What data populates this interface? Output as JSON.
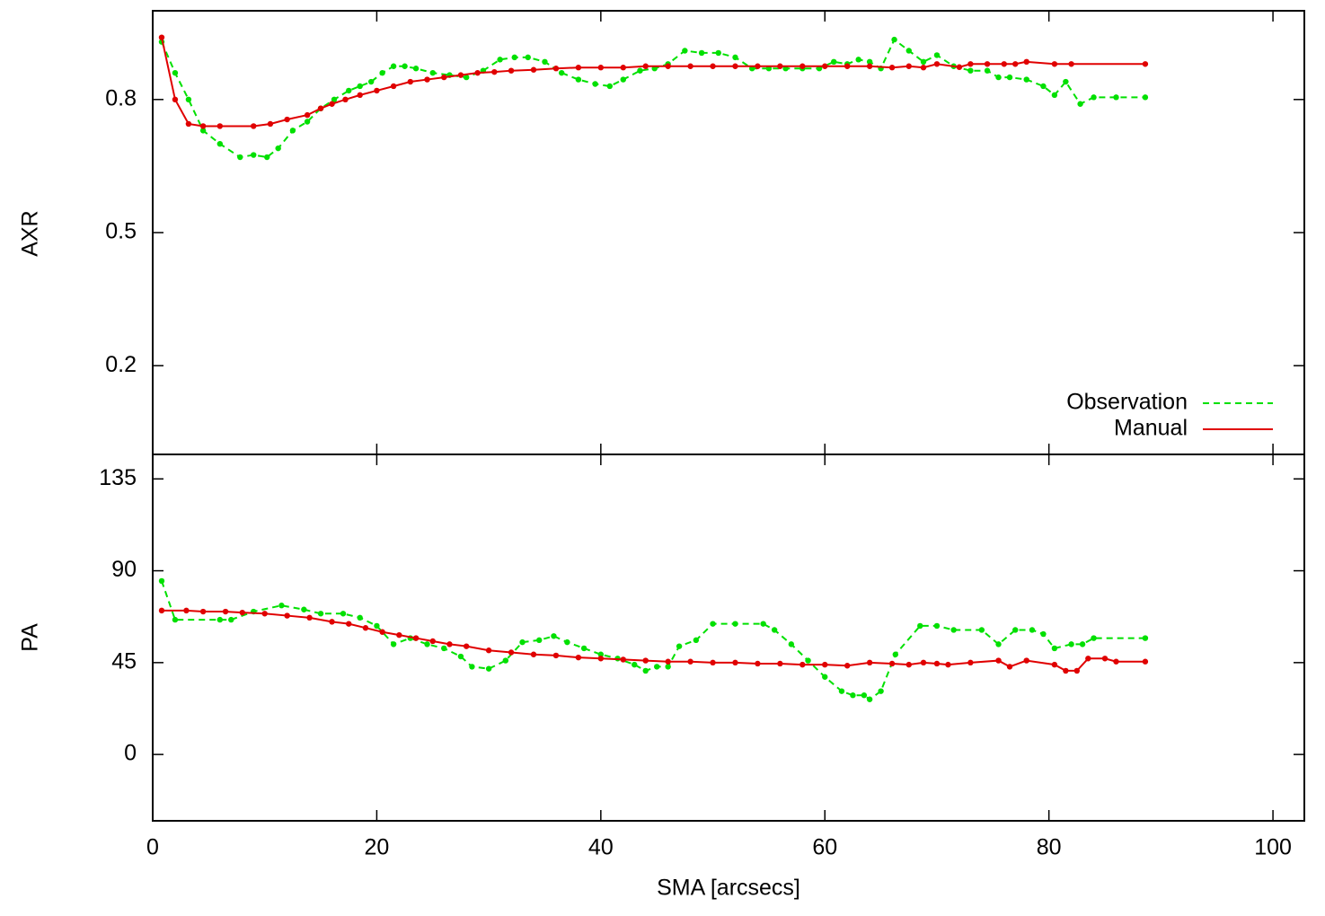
{
  "chart_data": [
    {
      "type": "line",
      "ylabel": "AXR",
      "xlim": [
        0,
        102.8
      ],
      "ylim": [
        0,
        1
      ],
      "yticks": [
        0.2,
        0.5,
        0.8
      ],
      "legend": "lower right",
      "series": [
        {
          "name": "Observation",
          "color": "#00e000",
          "linestyle": "dashed",
          "x": [
            0.8,
            2,
            3.2,
            4.5,
            6,
            7.8,
            9,
            10.2,
            11.2,
            12.5,
            13.8,
            15,
            16.2,
            17.5,
            18.5,
            19.5,
            20.5,
            21.5,
            22.5,
            23.5,
            25,
            26.5,
            28,
            29.5,
            31,
            32.3,
            33.5,
            35,
            36.5,
            38,
            39.5,
            40.8,
            42,
            43.5,
            44.8,
            46,
            47.5,
            49,
            50.5,
            52,
            53.5,
            55,
            56.5,
            58,
            59.5,
            60.8,
            62,
            63,
            64,
            65,
            66.2,
            67.5,
            68.8,
            70,
            71.5,
            73,
            74.5,
            75.5,
            76.5,
            78,
            79.5,
            80.5,
            81.5,
            82.8,
            84,
            86,
            88.6
          ],
          "values": [
            0.93,
            0.86,
            0.8,
            0.73,
            0.7,
            0.67,
            0.675,
            0.67,
            0.69,
            0.73,
            0.75,
            0.78,
            0.8,
            0.82,
            0.83,
            0.84,
            0.86,
            0.875,
            0.875,
            0.87,
            0.86,
            0.855,
            0.85,
            0.865,
            0.89,
            0.895,
            0.895,
            0.885,
            0.86,
            0.845,
            0.835,
            0.83,
            0.845,
            0.865,
            0.87,
            0.88,
            0.91,
            0.905,
            0.905,
            0.895,
            0.87,
            0.87,
            0.87,
            0.87,
            0.87,
            0.885,
            0.88,
            0.89,
            0.885,
            0.87,
            0.935,
            0.91,
            0.885,
            0.9,
            0.875,
            0.865,
            0.865,
            0.85,
            0.85,
            0.845,
            0.83,
            0.81,
            0.84,
            0.79,
            0.805,
            0.805,
            0.805
          ]
        },
        {
          "name": "Manual",
          "color": "#e00000",
          "linestyle": "solid",
          "x": [
            0.8,
            2,
            3.2,
            4.5,
            6,
            9,
            10.5,
            12,
            13.8,
            15,
            16,
            17.2,
            18.5,
            20,
            21.5,
            23,
            24.5,
            26,
            27.5,
            29,
            30.5,
            32,
            34,
            36,
            38,
            40,
            42,
            44,
            46,
            48,
            50,
            52,
            54,
            56,
            58,
            60,
            62,
            64,
            66,
            67.5,
            68.8,
            70,
            72,
            73,
            74.5,
            76,
            77,
            78,
            80.5,
            82,
            88.6
          ],
          "values": [
            0.94,
            0.8,
            0.745,
            0.74,
            0.74,
            0.74,
            0.745,
            0.755,
            0.765,
            0.78,
            0.79,
            0.8,
            0.81,
            0.82,
            0.83,
            0.84,
            0.845,
            0.85,
            0.855,
            0.86,
            0.862,
            0.865,
            0.867,
            0.87,
            0.872,
            0.872,
            0.872,
            0.875,
            0.875,
            0.875,
            0.875,
            0.875,
            0.875,
            0.875,
            0.875,
            0.875,
            0.875,
            0.875,
            0.872,
            0.875,
            0.872,
            0.88,
            0.873,
            0.88,
            0.88,
            0.88,
            0.88,
            0.885,
            0.88,
            0.88,
            0.88
          ]
        }
      ]
    },
    {
      "type": "line",
      "ylabel": "PA",
      "xlabel": "SMA [arcsecs]",
      "xlim": [
        0,
        102.8
      ],
      "xticks": [
        0,
        20,
        40,
        60,
        80,
        100
      ],
      "ylim": [
        -32.5,
        147
      ],
      "yticks": [
        0,
        45,
        90,
        135
      ],
      "series": [
        {
          "name": "Observation",
          "color": "#00e000",
          "linestyle": "dashed",
          "x": [
            0.8,
            2,
            6,
            7,
            9,
            11.5,
            13.5,
            15,
            17,
            18.5,
            20,
            21.5,
            23,
            24.5,
            26,
            27.5,
            28.5,
            30,
            31.5,
            33,
            34.5,
            35.8,
            37,
            38.5,
            40,
            41.5,
            43,
            44,
            45,
            46,
            47,
            48.5,
            50,
            52,
            54.5,
            55.5,
            57,
            58.5,
            60,
            61.5,
            62.5,
            63.5,
            64,
            65,
            66.3,
            68.5,
            70,
            71.5,
            74,
            75.5,
            77,
            78.5,
            79.5,
            80.5,
            82,
            83,
            84,
            88.6
          ],
          "values": [
            85,
            66,
            66,
            66,
            70,
            73,
            71,
            69,
            69,
            67,
            63,
            54,
            57,
            54,
            52,
            48,
            43,
            42,
            46,
            55,
            56,
            58,
            55,
            52,
            49,
            47,
            44,
            41,
            43,
            43,
            53,
            56,
            64,
            64,
            64,
            61,
            54,
            46,
            38,
            31,
            29,
            29,
            27,
            31,
            49,
            63,
            63,
            61,
            61,
            54,
            61,
            61,
            59,
            52,
            54,
            54,
            57,
            57
          ]
        },
        {
          "name": "Manual",
          "color": "#e00000",
          "linestyle": "solid",
          "x": [
            0.8,
            3,
            4.5,
            6.5,
            8,
            10,
            12,
            14,
            16,
            17.5,
            19,
            20.5,
            22,
            23.5,
            25,
            26.5,
            28,
            30,
            32,
            34,
            36,
            38,
            40,
            42,
            44,
            46,
            48,
            50,
            52,
            54,
            56,
            58,
            60,
            62,
            64,
            66,
            67.5,
            68.8,
            70,
            71,
            73,
            75.5,
            76.5,
            78,
            80.5,
            81.5,
            82.5,
            83.5,
            85,
            86,
            88.6
          ],
          "values": [
            70.5,
            70.5,
            70,
            70,
            69.5,
            69,
            68,
            67,
            65,
            64,
            62,
            60,
            58.5,
            57,
            55.5,
            54,
            53,
            51,
            50,
            49,
            48.5,
            47.5,
            47,
            46.5,
            46,
            45.5,
            45.5,
            45,
            45,
            44.5,
            44.5,
            44,
            44,
            43.5,
            45,
            44.5,
            44,
            45,
            44.5,
            44,
            45,
            46,
            43,
            46,
            44,
            41,
            41,
            47,
            47,
            45.5,
            45.5
          ]
        }
      ]
    }
  ]
}
